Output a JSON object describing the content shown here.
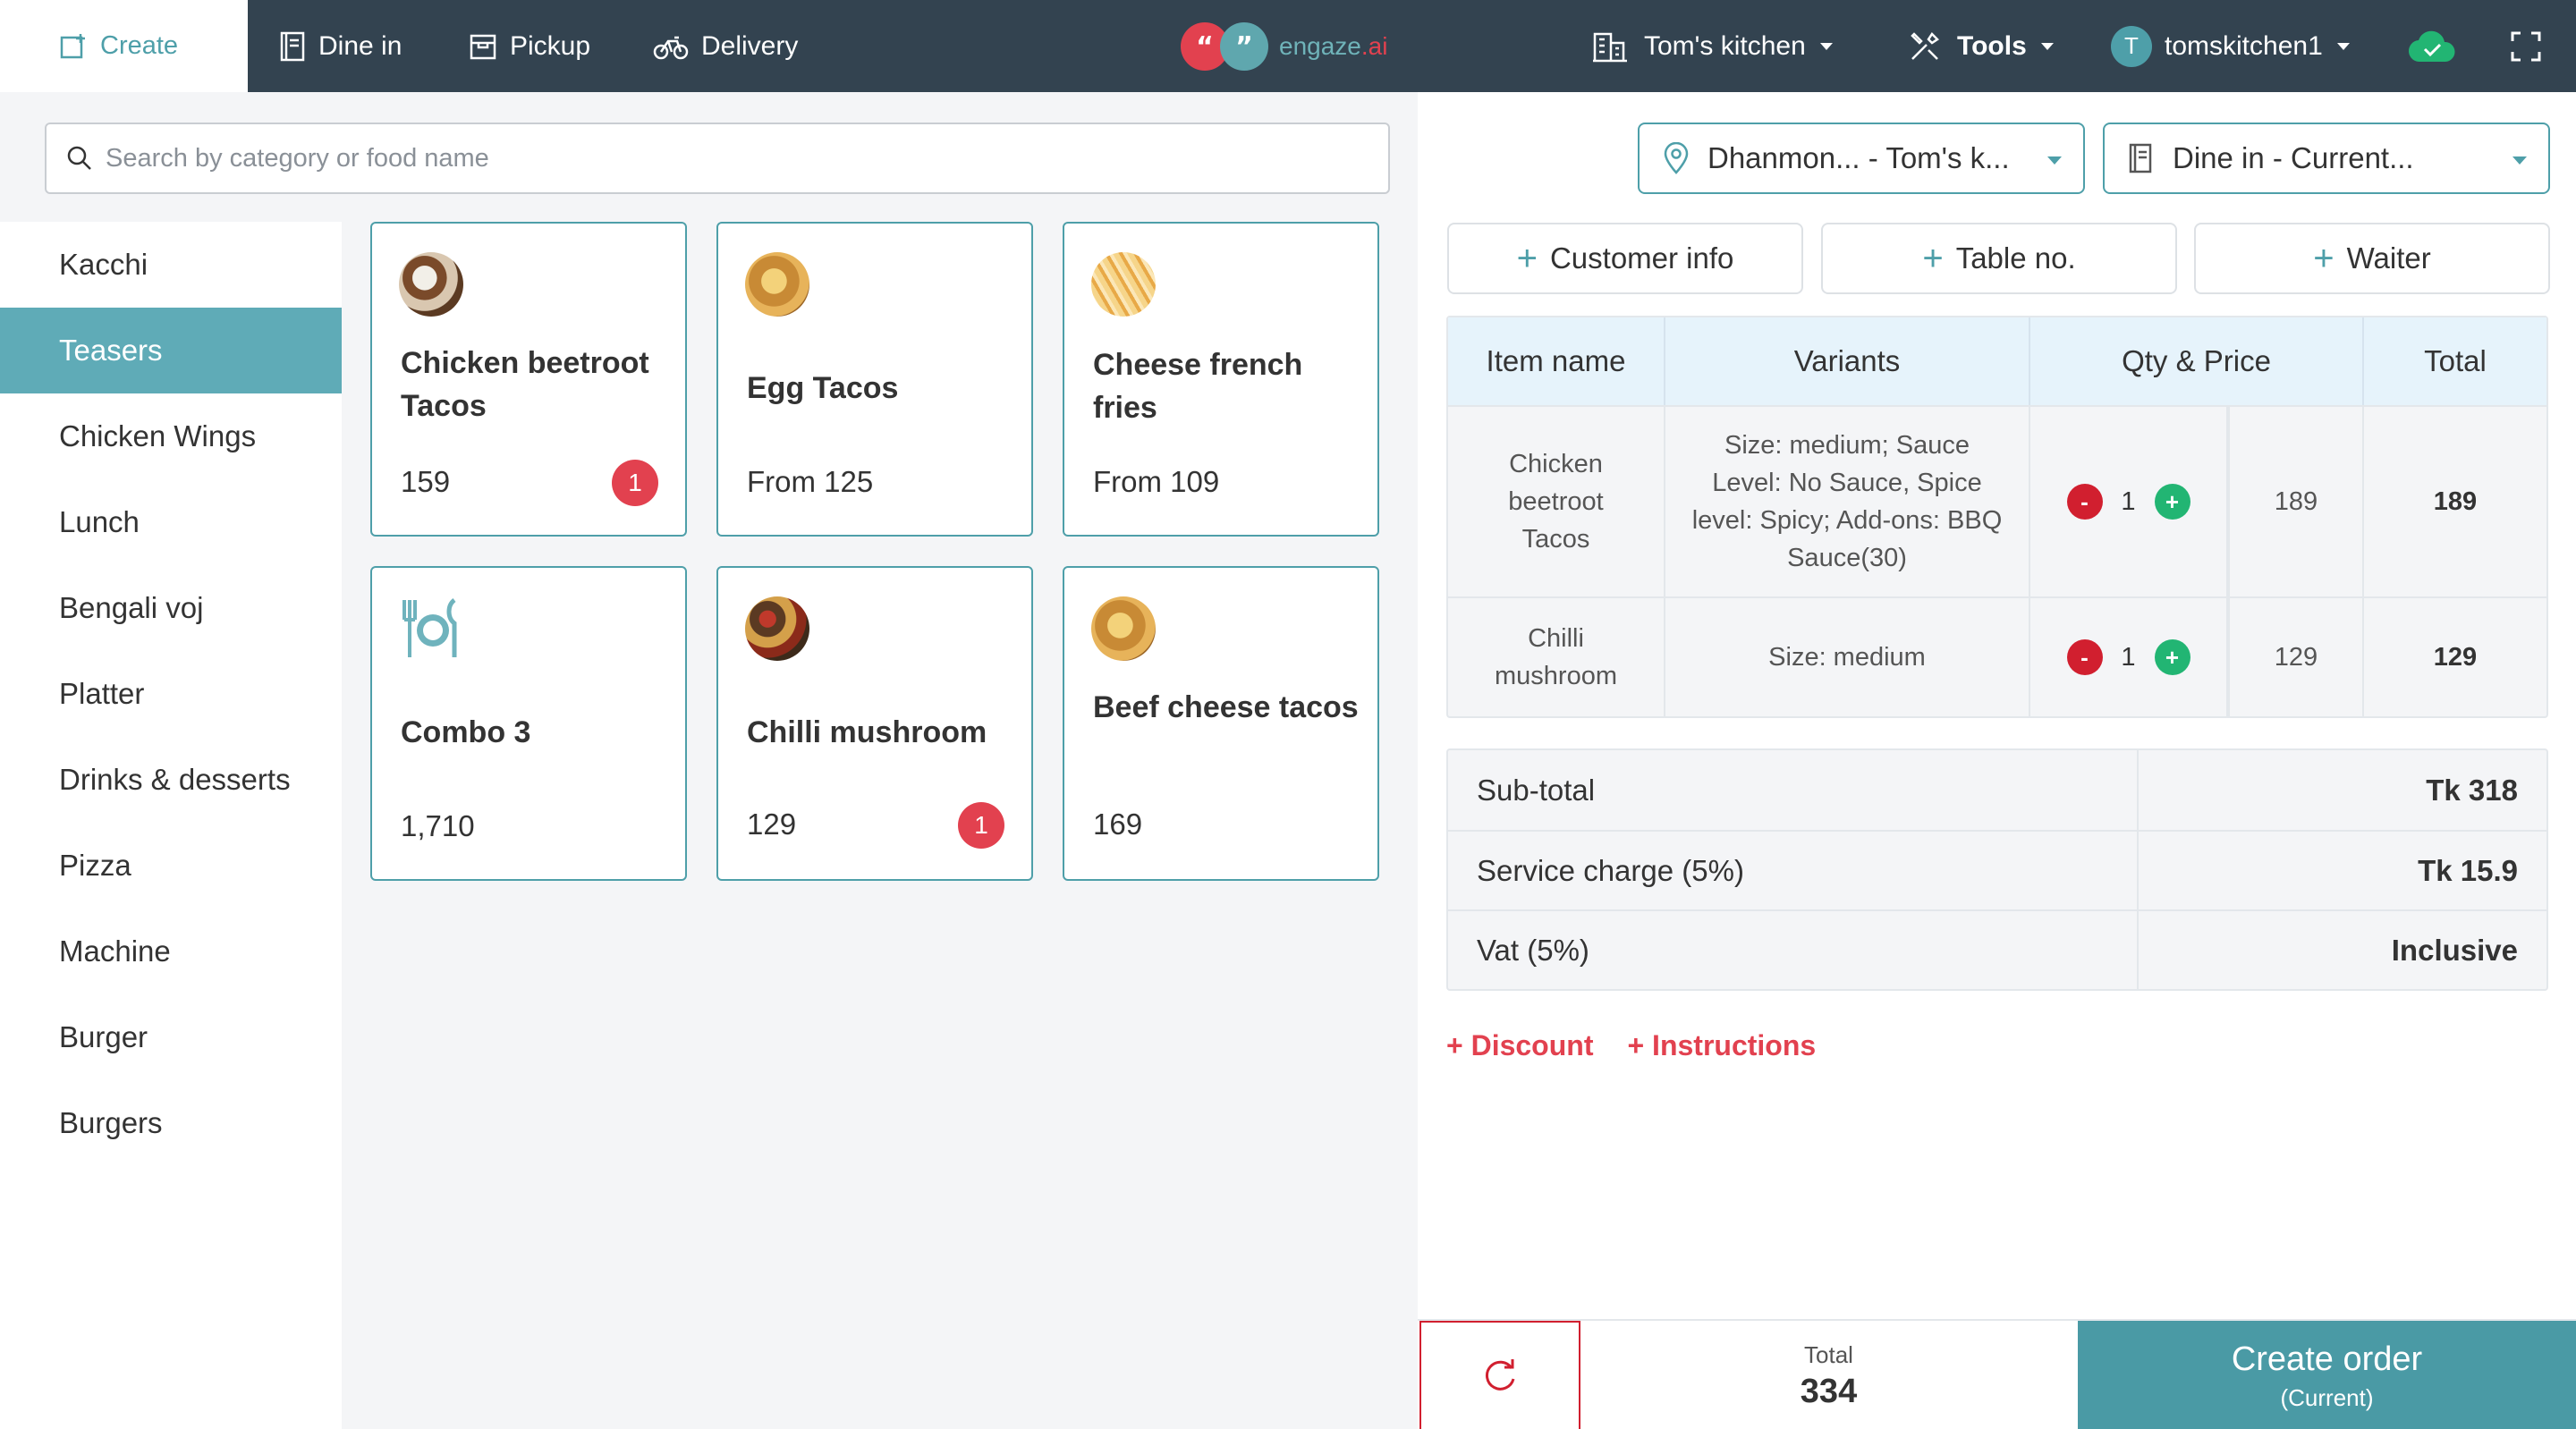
{
  "topbar": {
    "create": "Create",
    "dine_in": "Dine in",
    "pickup": "Pickup",
    "delivery": "Delivery",
    "logo_text": "engaze",
    "logo_suffix": ".ai",
    "kitchen": "Tom's kitchen",
    "tools": "Tools",
    "avatar_letter": "T",
    "user": "tomskitchen1"
  },
  "search": {
    "placeholder": "Search by category or food name"
  },
  "categories": [
    "Kacchi",
    "Teasers",
    "Chicken Wings",
    "Lunch",
    "Bengali voj",
    "Platter",
    "Drinks & desserts",
    "Pizza",
    "Machine",
    "Burger",
    "Burgers"
  ],
  "active_category": "Teasers",
  "products": [
    {
      "name": "Chicken beetroot Tacos",
      "price": "159",
      "badge": "1"
    },
    {
      "name": "Egg Tacos",
      "price": "From 125",
      "badge": ""
    },
    {
      "name": "Cheese french fries",
      "price": "From 109",
      "badge": ""
    },
    {
      "name": "Combo 3",
      "price": "1,710",
      "badge": ""
    },
    {
      "name": "Chilli mushroom",
      "price": "129",
      "badge": "1"
    },
    {
      "name": "Beef cheese tacos",
      "price": "169",
      "badge": ""
    }
  ],
  "order": {
    "branch": "Dhanmon... - Tom's k...",
    "mode": "Dine in - Current...",
    "customer_info": "Customer info",
    "table_no": "Table no.",
    "waiter": "Waiter",
    "headers": {
      "item": "Item name",
      "variants": "Variants",
      "qty_price": "Qty & Price",
      "total": "Total"
    },
    "items": [
      {
        "name": "Chicken beetroot Tacos",
        "variants": "Size: medium; Sauce Level: No Sauce, Spice level: Spicy; Add-ons: BBQ Sauce(30)",
        "qty": "1",
        "price": "189",
        "total": "189"
      },
      {
        "name": "Chilli mushroom",
        "variants": "Size: medium",
        "qty": "1",
        "price": "129",
        "total": "129"
      }
    ],
    "summary": {
      "subtotal_label": "Sub-total",
      "subtotal": "Tk 318",
      "service_label": "Service charge (5%)",
      "service": "Tk 15.9",
      "vat_label": "Vat (5%)",
      "vat": "Inclusive"
    },
    "discount": "+ Discount",
    "instructions": "+ Instructions"
  },
  "footer": {
    "total_label": "Total",
    "total": "334",
    "create_order": "Create order",
    "create_sub": "(Current)"
  },
  "colors": {
    "accent": "#4e9fa9",
    "topbar": "#334350",
    "danger": "#e2414f",
    "success": "#22b573"
  }
}
